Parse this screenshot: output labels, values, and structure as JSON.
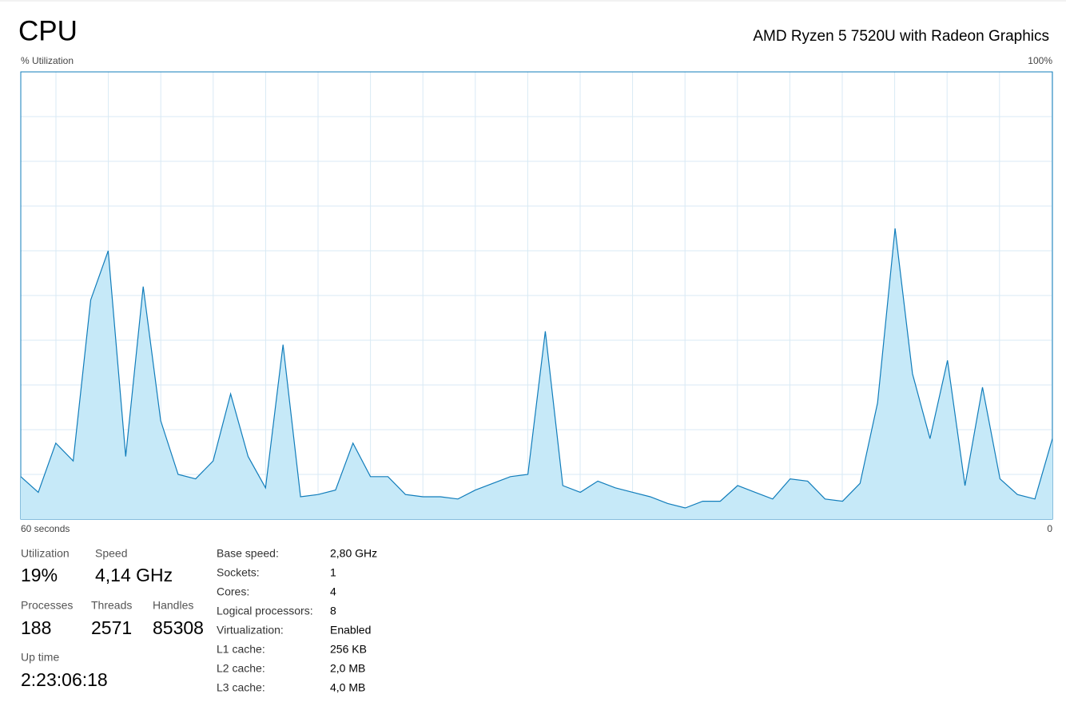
{
  "header": {
    "title": "CPU",
    "processor": "AMD Ryzen 5 7520U with Radeon Graphics"
  },
  "chart_data": {
    "type": "area",
    "y_label": "% Utilization",
    "ylim": [
      0,
      100
    ],
    "yticks": [
      {
        "value": 100,
        "label": "100%"
      }
    ],
    "xlim": [
      60,
      0
    ],
    "xticks": [
      {
        "value": 60,
        "label": "60 seconds"
      },
      0
    ],
    "color": "#117dbb",
    "fill": "#c6e9f8",
    "values": [
      9.5,
      6,
      17,
      13,
      49,
      60,
      14,
      52,
      22,
      10,
      9,
      13,
      28,
      14,
      7,
      39,
      5,
      5.5,
      6.5,
      17,
      9.5,
      9.5,
      5.5,
      5,
      5,
      4.5,
      6.5,
      8,
      9.5,
      10,
      42,
      7.5,
      6,
      8.5,
      7,
      6,
      5,
      3.5,
      2.5,
      4,
      4,
      7.5,
      6,
      4.5,
      9,
      8.5,
      4.5,
      4,
      8,
      26,
      65,
      32.5,
      18,
      35.5,
      7.5,
      29.5,
      9,
      5.5,
      4.5,
      18
    ]
  },
  "stats": [
    {
      "label": "Utilization",
      "value": "19%"
    },
    {
      "label": "Speed",
      "value": "4,14 GHz"
    },
    {
      "label": "Processes",
      "value": "188"
    },
    {
      "label": "Threads",
      "value": "2571"
    },
    {
      "label": "Handles",
      "value": "85308"
    },
    {
      "label": "Up time",
      "value": "2:23:06:18"
    }
  ],
  "details": [
    {
      "label": "Base speed:",
      "value": "2,80 GHz"
    },
    {
      "label": "Sockets:",
      "value": "1"
    },
    {
      "label": "Cores:",
      "value": "4"
    },
    {
      "label": "Logical processors:",
      "value": "8"
    },
    {
      "label": "Virtualization:",
      "value": "Enabled"
    },
    {
      "label": "L1 cache:",
      "value": "256 KB"
    },
    {
      "label": "L2 cache:",
      "value": "2,0 MB"
    },
    {
      "label": "L3 cache:",
      "value": "4,0 MB"
    }
  ]
}
